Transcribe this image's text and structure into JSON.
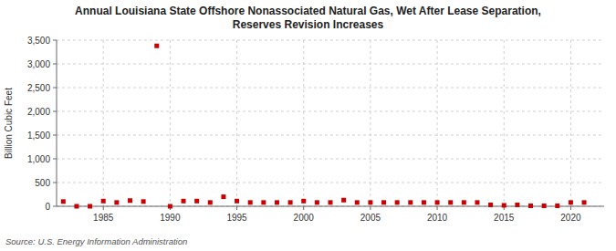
{
  "chart_data": {
    "type": "scatter",
    "title": "Annual Louisiana State Offshore Nonassociated Natural Gas, Wet After Lease Separation,\nReserves Revision Increases",
    "y_label": "Billion Cubic Feet",
    "annotations": [
      "Source: U.S. Energy Information Administration"
    ],
    "x": [
      1982,
      1983,
      1984,
      1985,
      1986,
      1987,
      1988,
      1989,
      1990,
      1991,
      1992,
      1993,
      1994,
      1995,
      1996,
      1997,
      1998,
      1999,
      2000,
      2001,
      2002,
      2003,
      2004,
      2005,
      2006,
      2007,
      2008,
      2009,
      2010,
      2011,
      2012,
      2013,
      2014,
      2015,
      2016,
      2017,
      2018,
      2019,
      2020,
      2021
    ],
    "values": [
      100,
      0,
      0,
      110,
      80,
      120,
      100,
      3380,
      0,
      110,
      110,
      80,
      200,
      110,
      80,
      80,
      80,
      80,
      110,
      80,
      80,
      130,
      80,
      80,
      80,
      80,
      80,
      80,
      80,
      80,
      80,
      80,
      30,
      20,
      30,
      10,
      10,
      10,
      80,
      80
    ],
    "color": "#cc0000",
    "marker": "square",
    "xlim": [
      1981.5,
      2022.5
    ],
    "xticks": [
      1985,
      1990,
      1995,
      2000,
      2005,
      2010,
      2015,
      2020
    ],
    "ylim": [
      0,
      3500
    ],
    "yticks": [
      0,
      500,
      {
        "value": 1000,
        "label": "1,000"
      },
      {
        "value": 1500,
        "label": "1,500"
      },
      {
        "value": 2000,
        "label": "2,000"
      },
      {
        "value": 2500,
        "label": "2,500"
      },
      {
        "value": 3000,
        "label": "3,000"
      },
      {
        "value": 3500,
        "label": "3,500"
      }
    ],
    "grid": true
  }
}
